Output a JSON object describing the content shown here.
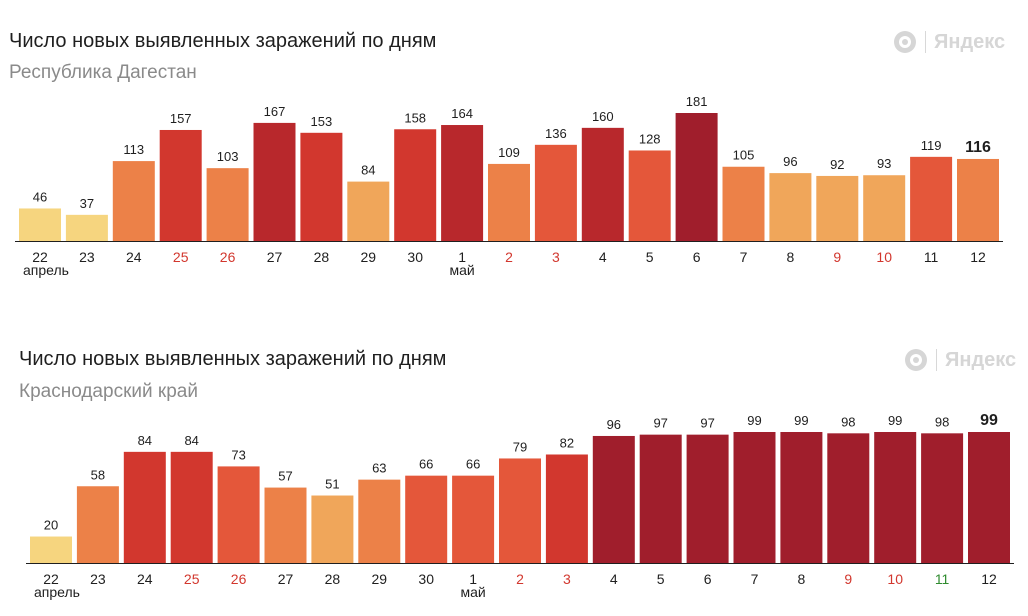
{
  "brand": {
    "name": "Яндекс",
    "color": "#d6d6d6"
  },
  "colors": {
    "scale": [
      "#f6d57f",
      "#f0a65a",
      "#ec8148",
      "#e4573a",
      "#d2372e",
      "#b8282c",
      "#a01e2c"
    ],
    "baseline": "#1f1f1f",
    "tick_regular": "#1f1f1f",
    "tick_weekend": "#d2372e",
    "tick_green": "#2e8b2e"
  },
  "chart_data": [
    {
      "type": "bar",
      "title": "Число новых выявленных заражений по дням",
      "subtitle": "Республика Дагестан",
      "categories": [
        "22",
        "23",
        "24",
        "25",
        "26",
        "27",
        "28",
        "29",
        "30",
        "1",
        "2",
        "3",
        "4",
        "5",
        "6",
        "7",
        "8",
        "9",
        "10",
        "11",
        "12"
      ],
      "values": [
        46,
        37,
        113,
        157,
        103,
        167,
        153,
        84,
        158,
        164,
        109,
        136,
        160,
        128,
        181,
        105,
        96,
        92,
        93,
        119,
        116
      ],
      "month_labels": [
        {
          "index": 0,
          "text": "апрель"
        },
        {
          "index": 9,
          "text": "май"
        }
      ],
      "weekend_indices": [
        3,
        4,
        10,
        11,
        17,
        18
      ],
      "green_indices": [],
      "ylim": [
        0,
        181
      ],
      "grid": false,
      "legend": "none"
    },
    {
      "type": "bar",
      "title": "Число новых выявленных заражений по дням",
      "subtitle": "Краснодарский край",
      "categories": [
        "22",
        "23",
        "24",
        "25",
        "26",
        "27",
        "28",
        "29",
        "30",
        "1",
        "2",
        "3",
        "4",
        "5",
        "6",
        "7",
        "8",
        "9",
        "10",
        "11",
        "12"
      ],
      "values": [
        20,
        58,
        84,
        84,
        73,
        57,
        51,
        63,
        66,
        66,
        79,
        82,
        96,
        97,
        97,
        99,
        99,
        98,
        99,
        98,
        99
      ],
      "month_labels": [
        {
          "index": 0,
          "text": "апрель"
        },
        {
          "index": 9,
          "text": "май"
        }
      ],
      "weekend_indices": [
        3,
        4,
        10,
        11,
        17,
        18
      ],
      "green_indices": [
        19
      ],
      "ylim": [
        0,
        99
      ],
      "grid": false,
      "legend": "none"
    }
  ]
}
